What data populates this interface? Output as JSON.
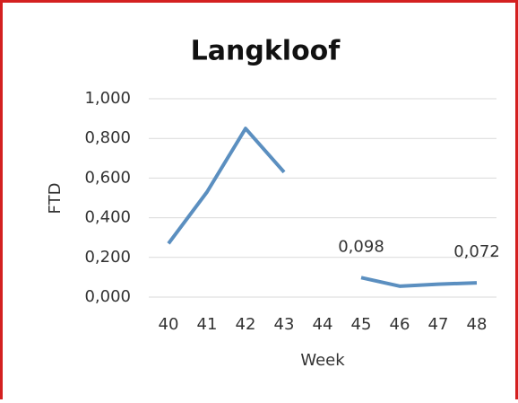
{
  "chart_data": {
    "type": "line",
    "title": "Langkloof",
    "x_label": "Week",
    "y_label": "FTD",
    "categories": [
      "40",
      "41",
      "42",
      "43",
      "44",
      "45",
      "46",
      "47",
      "48"
    ],
    "series": [
      {
        "name": "FTD",
        "color": "#5b8fc0",
        "values": [
          0.27,
          0.53,
          0.85,
          0.63,
          null,
          0.098,
          0.055,
          0.065,
          0.072
        ],
        "value_labels": [
          null,
          null,
          null,
          null,
          null,
          "0,098",
          null,
          null,
          "0,072"
        ]
      }
    ],
    "ylim": [
      0,
      1
    ],
    "yticks": [
      {
        "value": 0,
        "label": "0,000"
      },
      {
        "value": 0.2,
        "label": "0,200"
      },
      {
        "value": 0.4,
        "label": "0,400"
      },
      {
        "value": 0.6,
        "label": "0,600"
      },
      {
        "value": 0.8,
        "label": "0,800"
      },
      {
        "value": 1,
        "label": "1,000"
      }
    ],
    "grid": true
  }
}
